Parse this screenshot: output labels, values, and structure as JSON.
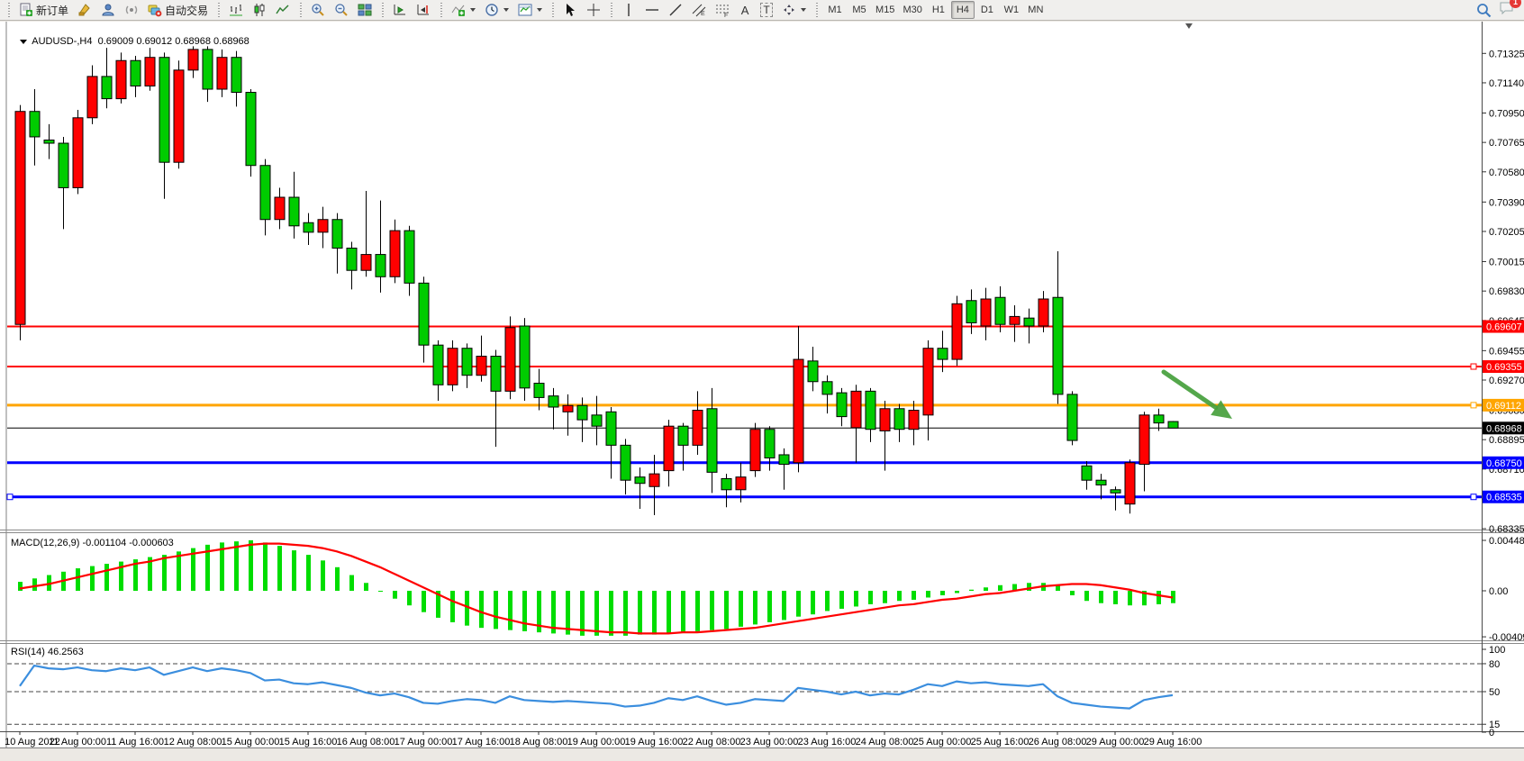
{
  "toolbar": {
    "new_order_label": "新订单",
    "autotrading_label": "自动交易",
    "timeframes": [
      "M1",
      "M5",
      "M15",
      "M30",
      "H1",
      "H4",
      "D1",
      "W1",
      "MN"
    ],
    "active_timeframe": "H4",
    "text_tool_label": "A",
    "label_tool_label": "T",
    "notification_count": "1"
  },
  "chart": {
    "symbol_line": "AUDUSD-,H4  0.69009 0.69012 0.68968 0.68968",
    "macd_label": "MACD(12,26,9) -0.001104 -0.000603",
    "rsi_label": "RSI(14) 46.2563"
  },
  "chart_data": {
    "type": "candlestick",
    "symbol": "AUDUSD-",
    "timeframe": "H4",
    "title": "AUDUSD-,H4 0.69009 0.69012 0.68968 0.68968",
    "colors": {
      "bull": "#FF0000",
      "bear": "#00CC00",
      "outline": "#000000",
      "macd_hist": "#00DD00",
      "macd_signal": "#FF0000",
      "rsi_line": "#3B8EDE",
      "level_red": "#FF0000",
      "level_orange": "#FFA500",
      "level_blue": "#0000FF",
      "price_line": "#000000",
      "arrow": "#46A03C"
    },
    "price_axis_ticks": [
      "0.71325",
      "0.71140",
      "0.70950",
      "0.70765",
      "0.70580",
      "0.70390",
      "0.70205",
      "0.70015",
      "0.69830",
      "0.69645",
      "0.69455",
      "0.69270",
      "0.69080",
      "0.68895",
      "0.68710",
      "0.68520",
      "0.68335"
    ],
    "time_labels": [
      "10 Aug 2022",
      "11 Aug 00:00",
      "11 Aug 16:00",
      "12 Aug 08:00",
      "15 Aug 00:00",
      "15 Aug 16:00",
      "16 Aug 08:00",
      "17 Aug 00:00",
      "17 Aug 16:00",
      "18 Aug 08:00",
      "19 Aug 00:00",
      "19 Aug 16:00",
      "22 Aug 08:00",
      "23 Aug 00:00",
      "23 Aug 16:00",
      "24 Aug 08:00",
      "25 Aug 00:00",
      "25 Aug 16:00",
      "26 Aug 08:00",
      "29 Aug 00:00",
      "29 Aug 16:00"
    ],
    "hlines": [
      {
        "price": 0.69607,
        "label": "0.69607",
        "color": "#FF0000",
        "width": 2,
        "text": "#FFFFFF"
      },
      {
        "price": 0.69355,
        "label": "0.69355",
        "color": "#FF0000",
        "width": 2,
        "text": "#FFFFFF",
        "handle_right": true
      },
      {
        "price": 0.69112,
        "label": "0.69112",
        "color": "#FFA500",
        "width": 3,
        "text": "#FFFFFF",
        "handle_right": true
      },
      {
        "price": 0.68968,
        "label": "0.68968",
        "color": "#000000",
        "width": 1,
        "text": "#FFFFFF"
      },
      {
        "price": 0.6875,
        "label": "0.68750",
        "color": "#0000FF",
        "width": 3,
        "text": "#FFFFFF"
      },
      {
        "price": 0.68535,
        "label": "0.68535",
        "color": "#0000FF",
        "width": 3,
        "text": "#FFFFFF",
        "handle_right": true,
        "handle_left": true
      }
    ],
    "candles": [
      [
        0.6962,
        0.71,
        0.6952,
        0.7096
      ],
      [
        0.7096,
        0.711,
        0.7062,
        0.708
      ],
      [
        0.7078,
        0.7088,
        0.7066,
        0.7076
      ],
      [
        0.7076,
        0.708,
        0.7022,
        0.7048
      ],
      [
        0.7048,
        0.7097,
        0.7044,
        0.7092
      ],
      [
        0.7092,
        0.7125,
        0.7088,
        0.7118
      ],
      [
        0.7118,
        0.7136,
        0.7098,
        0.7104
      ],
      [
        0.7104,
        0.7133,
        0.7101,
        0.7128
      ],
      [
        0.7128,
        0.7131,
        0.7105,
        0.7112
      ],
      [
        0.7112,
        0.7136,
        0.7109,
        0.713
      ],
      [
        0.713,
        0.7133,
        0.7041,
        0.7064
      ],
      [
        0.7064,
        0.7128,
        0.706,
        0.7122
      ],
      [
        0.7122,
        0.7137,
        0.7117,
        0.7135
      ],
      [
        0.7135,
        0.7137,
        0.7102,
        0.711
      ],
      [
        0.711,
        0.7135,
        0.7105,
        0.713
      ],
      [
        0.713,
        0.7134,
        0.7099,
        0.7108
      ],
      [
        0.7108,
        0.711,
        0.7055,
        0.7062
      ],
      [
        0.7062,
        0.7066,
        0.7018,
        0.7028
      ],
      [
        0.7028,
        0.7048,
        0.7022,
        0.7042
      ],
      [
        0.7042,
        0.7058,
        0.7016,
        0.7024
      ],
      [
        0.7026,
        0.7032,
        0.7012,
        0.702
      ],
      [
        0.702,
        0.7036,
        0.701,
        0.7028
      ],
      [
        0.7028,
        0.7032,
        0.6994,
        0.701
      ],
      [
        0.701,
        0.7014,
        0.6984,
        0.6996
      ],
      [
        0.6996,
        0.7046,
        0.6992,
        0.7006
      ],
      [
        0.7006,
        0.704,
        0.6982,
        0.6992
      ],
      [
        0.6992,
        0.7028,
        0.6988,
        0.7021
      ],
      [
        0.7021,
        0.7024,
        0.698,
        0.6988
      ],
      [
        0.6988,
        0.6992,
        0.6938,
        0.6949
      ],
      [
        0.6949,
        0.6952,
        0.6914,
        0.6924
      ],
      [
        0.6924,
        0.6952,
        0.692,
        0.6947
      ],
      [
        0.6947,
        0.695,
        0.6922,
        0.693
      ],
      [
        0.693,
        0.6955,
        0.6926,
        0.6942
      ],
      [
        0.6942,
        0.6946,
        0.6885,
        0.692
      ],
      [
        0.692,
        0.6967,
        0.6915,
        0.696
      ],
      [
        0.6961,
        0.6966,
        0.6914,
        0.6922
      ],
      [
        0.6925,
        0.6934,
        0.6908,
        0.6916
      ],
      [
        0.6917,
        0.6922,
        0.6896,
        0.691
      ],
      [
        0.6907,
        0.6918,
        0.6892,
        0.6911
      ],
      [
        0.6911,
        0.6916,
        0.6888,
        0.6902
      ],
      [
        0.6905,
        0.6917,
        0.6886,
        0.6898
      ],
      [
        0.6907,
        0.691,
        0.6865,
        0.6886
      ],
      [
        0.6886,
        0.689,
        0.6855,
        0.6864
      ],
      [
        0.6866,
        0.6872,
        0.6846,
        0.6862
      ],
      [
        0.686,
        0.688,
        0.6842,
        0.6868
      ],
      [
        0.687,
        0.6902,
        0.686,
        0.6898
      ],
      [
        0.6898,
        0.69,
        0.687,
        0.6886
      ],
      [
        0.6886,
        0.692,
        0.688,
        0.6908
      ],
      [
        0.6909,
        0.6922,
        0.6856,
        0.6869
      ],
      [
        0.6865,
        0.6868,
        0.6847,
        0.6858
      ],
      [
        0.6858,
        0.6875,
        0.685,
        0.6866
      ],
      [
        0.687,
        0.69,
        0.6866,
        0.6896
      ],
      [
        0.6896,
        0.6898,
        0.687,
        0.6878
      ],
      [
        0.688,
        0.6884,
        0.6858,
        0.6874
      ],
      [
        0.6875,
        0.6961,
        0.6869,
        0.694
      ],
      [
        0.6939,
        0.6948,
        0.692,
        0.6926
      ],
      [
        0.6926,
        0.693,
        0.6906,
        0.6918
      ],
      [
        0.6919,
        0.6922,
        0.6898,
        0.6904
      ],
      [
        0.6897,
        0.6924,
        0.6875,
        0.692
      ],
      [
        0.692,
        0.6922,
        0.6888,
        0.6896
      ],
      [
        0.6895,
        0.6914,
        0.687,
        0.6909
      ],
      [
        0.6909,
        0.6912,
        0.6888,
        0.6896
      ],
      [
        0.6896,
        0.6914,
        0.6886,
        0.6908
      ],
      [
        0.6905,
        0.6952,
        0.6889,
        0.6947
      ],
      [
        0.6947,
        0.6958,
        0.6932,
        0.694
      ],
      [
        0.694,
        0.698,
        0.6936,
        0.6975
      ],
      [
        0.6977,
        0.6984,
        0.6956,
        0.6963
      ],
      [
        0.6961,
        0.6985,
        0.6952,
        0.6978
      ],
      [
        0.6979,
        0.6986,
        0.6957,
        0.6962
      ],
      [
        0.6962,
        0.6974,
        0.6951,
        0.6967
      ],
      [
        0.6966,
        0.6972,
        0.695,
        0.6961
      ],
      [
        0.6961,
        0.6983,
        0.6957,
        0.6978
      ],
      [
        0.6979,
        0.7008,
        0.6912,
        0.6918
      ],
      [
        0.6918,
        0.692,
        0.6886,
        0.6889
      ],
      [
        0.6873,
        0.6876,
        0.6858,
        0.6864
      ],
      [
        0.6864,
        0.6868,
        0.6852,
        0.6861
      ],
      [
        0.6858,
        0.686,
        0.6845,
        0.6856
      ],
      [
        0.6849,
        0.6877,
        0.6843,
        0.6875
      ],
      [
        0.6874,
        0.6907,
        0.6857,
        0.6905
      ],
      [
        0.6905,
        0.6909,
        0.6895,
        0.69
      ],
      [
        0.69009,
        0.69012,
        0.68968,
        0.68968
      ]
    ],
    "macd": {
      "label": "MACD(12,26,9)",
      "current_values": [
        "-0.001104",
        "-0.000603"
      ],
      "axis_ticks": [
        "0.004489",
        "0.00",
        "-0.004098"
      ],
      "hist": [
        0.0008,
        0.0011,
        0.0014,
        0.0017,
        0.002,
        0.0022,
        0.0024,
        0.0026,
        0.0028,
        0.003,
        0.0032,
        0.0035,
        0.0038,
        0.0041,
        0.0043,
        0.0044,
        0.0045,
        0.0043,
        0.004,
        0.0036,
        0.0032,
        0.0027,
        0.0021,
        0.0014,
        0.0007,
        0.0,
        -0.0007,
        -0.0013,
        -0.0019,
        -0.0024,
        -0.0028,
        -0.0031,
        -0.0033,
        -0.0034,
        -0.0035,
        -0.0036,
        -0.0037,
        -0.0038,
        -0.0039,
        -0.004,
        -0.004,
        -0.004,
        -0.004,
        -0.0039,
        -0.0039,
        -0.0038,
        -0.0037,
        -0.0036,
        -0.0035,
        -0.0034,
        -0.0032,
        -0.003,
        -0.0028,
        -0.0026,
        -0.0023,
        -0.0021,
        -0.0018,
        -0.0016,
        -0.0014,
        -0.0012,
        -0.0011,
        -0.0009,
        -0.0008,
        -0.0006,
        -0.0004,
        -0.0002,
        0.0001,
        0.0003,
        0.0005,
        0.0006,
        0.0007,
        0.0007,
        0.0005,
        -0.0004,
        -0.0009,
        -0.0011,
        -0.0012,
        -0.0013,
        -0.0013,
        -0.0012,
        -0.0011
      ],
      "signal": [
        0.0002,
        0.0004,
        0.0006,
        0.0009,
        0.0012,
        0.0015,
        0.0018,
        0.0021,
        0.0024,
        0.0026,
        0.0029,
        0.0031,
        0.0033,
        0.0035,
        0.0037,
        0.0039,
        0.0041,
        0.0042,
        0.0042,
        0.0041,
        0.004,
        0.0038,
        0.0035,
        0.0031,
        0.0026,
        0.0021,
        0.0015,
        0.0009,
        0.0003,
        -0.0003,
        -0.0009,
        -0.0014,
        -0.0019,
        -0.0023,
        -0.0026,
        -0.0029,
        -0.0031,
        -0.0033,
        -0.0034,
        -0.0035,
        -0.0036,
        -0.0037,
        -0.0037,
        -0.0038,
        -0.0038,
        -0.0038,
        -0.0037,
        -0.0037,
        -0.0036,
        -0.0035,
        -0.0034,
        -0.0033,
        -0.0031,
        -0.0029,
        -0.0027,
        -0.0025,
        -0.0023,
        -0.0021,
        -0.0019,
        -0.0017,
        -0.0015,
        -0.0013,
        -0.0012,
        -0.001,
        -0.0008,
        -0.0007,
        -0.0005,
        -0.0003,
        -0.0002,
        0.0,
        0.0002,
        0.0004,
        0.0005,
        0.0006,
        0.0006,
        0.0005,
        0.0003,
        0.0001,
        -0.0002,
        -0.0004,
        -0.0006
      ]
    },
    "rsi": {
      "label": "RSI(14)",
      "current_value": "46.2563",
      "axis_ticks": [
        "100",
        "80",
        "50",
        "15",
        "0"
      ],
      "levels": [
        80,
        50,
        15
      ],
      "values": [
        56,
        78,
        75,
        74,
        76,
        73,
        72,
        75,
        73,
        76,
        68,
        72,
        76,
        72,
        75,
        73,
        70,
        62,
        63,
        59,
        58,
        60,
        57,
        54,
        49,
        46,
        48,
        44,
        38,
        37,
        40,
        42,
        41,
        38,
        45,
        41,
        40,
        39,
        40,
        39,
        38,
        37,
        34,
        35,
        38,
        43,
        41,
        45,
        40,
        36,
        38,
        42,
        41,
        40,
        54,
        52,
        50,
        47,
        50,
        46,
        48,
        47,
        52,
        58,
        56,
        61,
        59,
        60,
        58,
        57,
        56,
        58,
        45,
        38,
        36,
        34,
        33,
        32,
        41,
        44,
        46.2563
      ]
    },
    "annotation_arrow": {
      "from": [
        1292,
        413
      ],
      "to": [
        1368,
        465
      ],
      "color": "#46A03C"
    }
  }
}
